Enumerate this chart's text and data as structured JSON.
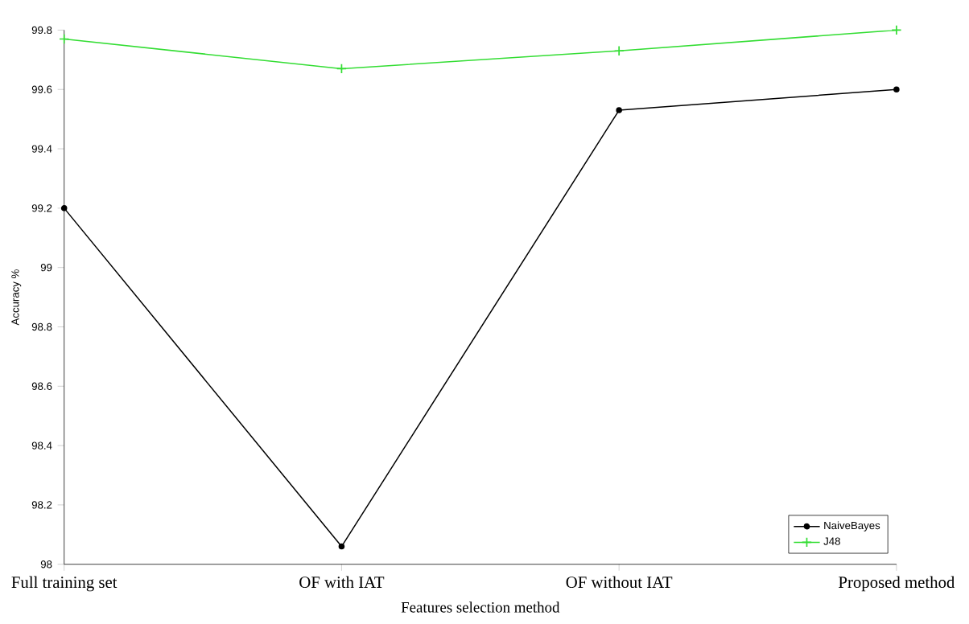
{
  "chart_data": {
    "type": "line",
    "xlabel": "Features selection method",
    "ylabel": "Accuracy %",
    "categories": [
      "Full training set",
      "OF with IAT",
      "OF without IAT",
      "Proposed method"
    ],
    "series": [
      {
        "name": "NaiveBayes",
        "color": "#000000",
        "marker": "circle",
        "values": [
          99.2,
          98.06,
          99.53,
          99.6
        ]
      },
      {
        "name": "J48",
        "color": "#33dd33",
        "marker": "cross",
        "values": [
          99.77,
          99.67,
          99.73,
          99.8
        ]
      }
    ],
    "ylim": [
      98,
      99.8
    ],
    "yticks": [
      98,
      98.2,
      98.4,
      98.6,
      98.8,
      99,
      99.2,
      99.4,
      99.6,
      99.8
    ],
    "legend": "bottom right",
    "grid": false
  }
}
